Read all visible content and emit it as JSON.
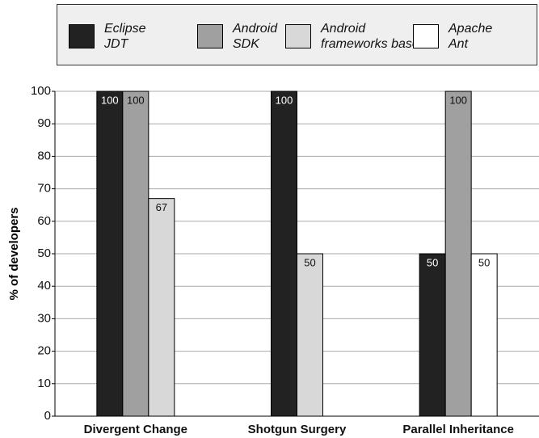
{
  "chart_data": {
    "type": "bar",
    "y_label": "% of developers",
    "categories": [
      "Divergent Change",
      "Shotgun Surgery",
      "Parallel Inheritance"
    ],
    "series": [
      {
        "name": "Eclipse JDT",
        "color": "#222222",
        "values": [
          100,
          100,
          50
        ]
      },
      {
        "name": "Android SDK",
        "color": "#a0a0a0",
        "values": [
          100,
          null,
          100
        ]
      },
      {
        "name": "Android frameworks base",
        "color": "#d8d8d8",
        "values": [
          67,
          50,
          null
        ]
      },
      {
        "name": "Apache Ant",
        "color": "#ffffff",
        "values": [
          null,
          null,
          50
        ]
      }
    ],
    "ylim": [
      0,
      100
    ],
    "yticks": [
      0,
      10,
      20,
      30,
      40,
      50,
      60,
      70,
      80,
      90,
      100
    ],
    "grid": true
  }
}
